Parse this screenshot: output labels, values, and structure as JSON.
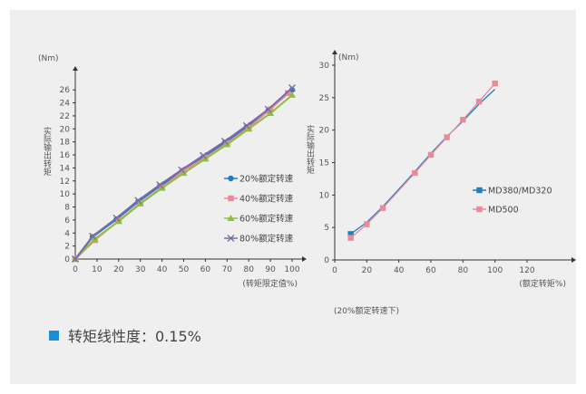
{
  "chart_data": [
    {
      "type": "line",
      "y_unit": "(Nm)",
      "ylabel": "实际输出转矩",
      "xlabel": "(转矩限定值%)",
      "xlim": [
        0,
        100
      ],
      "ylim": [
        0,
        27
      ],
      "x_ticks": [
        0,
        10,
        20,
        30,
        40,
        50,
        60,
        70,
        80,
        90,
        100
      ],
      "y_ticks": [
        0,
        2,
        4,
        6,
        8,
        10,
        12,
        14,
        16,
        18,
        20,
        22,
        24,
        26
      ],
      "legend_position": "right",
      "series": [
        {
          "name": "20%额定转速",
          "color": "#1b7fc4",
          "marker": "circle",
          "x": [
            0,
            8,
            19,
            29,
            39,
            49,
            59,
            69,
            79,
            89,
            100
          ],
          "y": [
            0,
            3.4,
            6.1,
            8.8,
            11.2,
            13.4,
            15.6,
            17.9,
            20.3,
            22.8,
            26.0
          ]
        },
        {
          "name": "40%额定转速",
          "color": "#e88a9a",
          "marker": "square",
          "x": [
            0,
            9,
            20,
            30,
            40,
            50,
            60,
            70,
            80,
            90,
            98
          ],
          "y": [
            0,
            2.9,
            5.9,
            8.6,
            11.0,
            13.6,
            15.6,
            17.8,
            20.2,
            23.0,
            25.5
          ]
        },
        {
          "name": "60%额定转速",
          "color": "#8fbf3a",
          "marker": "triangle",
          "x": [
            0,
            9,
            20,
            30,
            40,
            50,
            60,
            70,
            80,
            90,
            100
          ],
          "y": [
            0,
            3.1,
            5.8,
            8.5,
            10.9,
            13.2,
            15.4,
            17.6,
            20.0,
            22.4,
            25.2
          ]
        },
        {
          "name": "80%额定转速",
          "color": "#7b6aa8",
          "marker": "x",
          "x": [
            0,
            8,
            19,
            29,
            39,
            49,
            59,
            69,
            79,
            89,
            100
          ],
          "y": [
            0,
            3.5,
            6.3,
            9.0,
            11.4,
            13.7,
            15.9,
            18.1,
            20.5,
            23.0,
            26.3
          ]
        }
      ]
    },
    {
      "type": "line",
      "y_unit": "(Nm)",
      "ylabel": "实际输出转矩",
      "xlabel": "(额定转矩%)",
      "xlim": [
        0,
        120
      ],
      "ylim": [
        0,
        30
      ],
      "x_ticks": [
        0,
        20,
        40,
        60,
        80,
        100,
        120
      ],
      "y_ticks": [
        0,
        5,
        10,
        15,
        20,
        25,
        30
      ],
      "legend_position": "right",
      "series": [
        {
          "name": "MD380/MD320",
          "color": "#1b7fc4",
          "marker": "square",
          "x": [
            10,
            20,
            30,
            50,
            60,
            70,
            80,
            90,
            100
          ],
          "y": [
            4.0,
            5.8,
            8.2,
            13.6,
            16.4,
            19.0,
            21.4,
            24.0,
            26.3
          ]
        },
        {
          "name": "MD500",
          "color": "#e88a9a",
          "marker": "square",
          "x": [
            10,
            20,
            30,
            50,
            60,
            70,
            80,
            90,
            100
          ],
          "y": [
            3.4,
            5.5,
            8.0,
            13.4,
            16.2,
            18.9,
            21.6,
            24.4,
            27.2
          ]
        }
      ]
    }
  ],
  "footnote": "(20%额定转速下)",
  "summary": {
    "text": "转矩线性度：0.15%",
    "color": "#1b8fd6"
  }
}
